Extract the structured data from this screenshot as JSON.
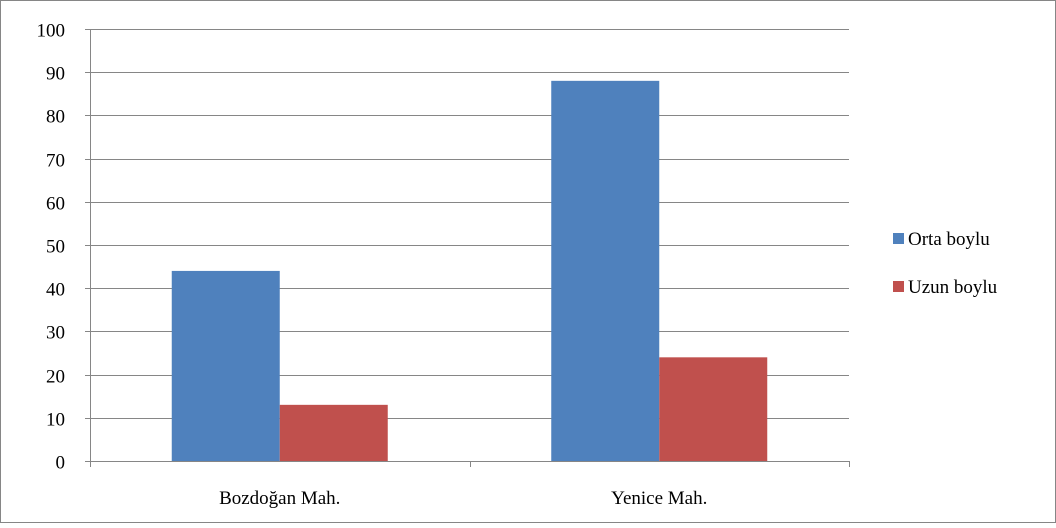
{
  "chart_data": {
    "type": "bar",
    "title": "",
    "xlabel": "",
    "ylabel": "",
    "categories": [
      "Bozdoğan Mah.",
      "Yenice Mah."
    ],
    "series": [
      {
        "name": "Orta boylu",
        "values": [
          44,
          88
        ],
        "color": "#4f81bd"
      },
      {
        "name": "Uzun boylu",
        "values": [
          13,
          24
        ],
        "color": "#c0504d"
      }
    ],
    "ylim": [
      0,
      100
    ],
    "yticks": [
      "0",
      "10",
      "20",
      "30",
      "40",
      "50",
      "60",
      "70",
      "80",
      "90",
      "100"
    ],
    "grid": true,
    "legend_position": "right",
    "colors": {
      "gridline": "#868686",
      "axis": "#868686",
      "border": "#868686"
    }
  }
}
